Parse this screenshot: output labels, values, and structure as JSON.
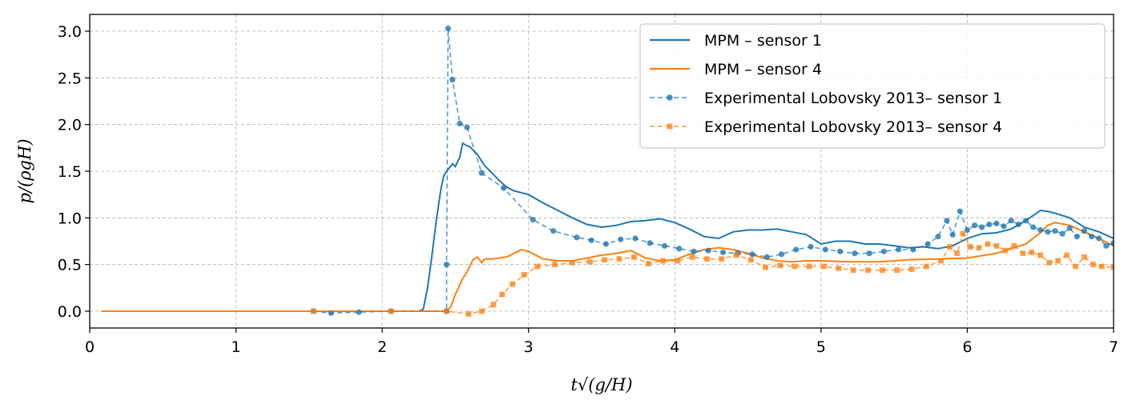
{
  "chart_data": {
    "type": "line",
    "xlabel": "t√(g/H)",
    "ylabel": "p/(ρgH)",
    "xlim": [
      0,
      7
    ],
    "ylim": [
      -0.18,
      3.18
    ],
    "x_ticks": [
      "0",
      "1",
      "2",
      "3",
      "4",
      "5",
      "6",
      "7"
    ],
    "y_ticks": [
      "0.0",
      "0.5",
      "1.0",
      "1.5",
      "2.0",
      "2.5",
      "3.0"
    ],
    "x_tick_values": [
      0,
      1,
      2,
      3,
      4,
      5,
      6,
      7
    ],
    "y_tick_values": [
      0,
      0.5,
      1.0,
      1.5,
      2.0,
      2.5,
      3.0
    ],
    "grid": true,
    "legend_position": "top-right",
    "colors": {
      "blue": "#1f77b4",
      "orange": "#ff7f0e"
    },
    "series": [
      {
        "name": "MPM – sensor 1",
        "style": "solid",
        "color": "#1f77b4",
        "x": [
          0.08,
          2.25,
          2.28,
          2.31,
          2.34,
          2.37,
          2.4,
          2.42,
          2.45,
          2.48,
          2.5,
          2.53,
          2.55,
          2.57,
          2.6,
          2.65,
          2.7,
          2.75,
          2.8,
          2.85,
          2.9,
          2.95,
          3.0,
          3.1,
          3.2,
          3.3,
          3.4,
          3.5,
          3.6,
          3.7,
          3.8,
          3.9,
          4.0,
          4.1,
          4.2,
          4.3,
          4.4,
          4.5,
          4.6,
          4.7,
          4.8,
          4.9,
          5.0,
          5.1,
          5.2,
          5.3,
          5.4,
          5.5,
          5.6,
          5.7,
          5.8,
          5.9,
          6.0,
          6.1,
          6.2,
          6.3,
          6.4,
          6.5,
          6.55,
          6.6,
          6.7,
          6.8,
          6.9,
          7.0
        ],
        "y": [
          0.0,
          0.0,
          0.02,
          0.25,
          0.6,
          0.98,
          1.3,
          1.45,
          1.52,
          1.58,
          1.55,
          1.65,
          1.8,
          1.78,
          1.76,
          1.68,
          1.56,
          1.48,
          1.4,
          1.33,
          1.29,
          1.27,
          1.25,
          1.16,
          1.08,
          1.0,
          0.93,
          0.9,
          0.92,
          0.96,
          0.97,
          0.99,
          0.95,
          0.88,
          0.8,
          0.78,
          0.85,
          0.87,
          0.87,
          0.88,
          0.85,
          0.82,
          0.72,
          0.75,
          0.75,
          0.72,
          0.72,
          0.7,
          0.68,
          0.69,
          0.67,
          0.7,
          0.78,
          0.83,
          0.84,
          0.88,
          0.97,
          1.08,
          1.07,
          1.05,
          1.0,
          0.9,
          0.85,
          0.78
        ]
      },
      {
        "name": "MPM – sensor 4",
        "style": "solid",
        "color": "#ff7f0e",
        "x": [
          0.08,
          2.44,
          2.47,
          2.5,
          2.53,
          2.55,
          2.58,
          2.62,
          2.65,
          2.68,
          2.7,
          2.75,
          2.8,
          2.85,
          2.9,
          2.95,
          3.0,
          3.1,
          3.2,
          3.3,
          3.4,
          3.5,
          3.6,
          3.7,
          3.8,
          3.9,
          4.0,
          4.1,
          4.2,
          4.3,
          4.4,
          4.5,
          4.6,
          4.7,
          4.8,
          4.9,
          5.0,
          5.2,
          5.4,
          5.6,
          5.8,
          6.0,
          6.2,
          6.4,
          6.5,
          6.55,
          6.6,
          6.7,
          6.8,
          6.9,
          7.0
        ],
        "y": [
          0.0,
          0.0,
          0.05,
          0.18,
          0.28,
          0.35,
          0.42,
          0.55,
          0.58,
          0.52,
          0.56,
          0.56,
          0.57,
          0.58,
          0.62,
          0.66,
          0.64,
          0.56,
          0.54,
          0.54,
          0.57,
          0.6,
          0.62,
          0.65,
          0.57,
          0.54,
          0.55,
          0.61,
          0.66,
          0.68,
          0.66,
          0.62,
          0.57,
          0.54,
          0.53,
          0.54,
          0.54,
          0.53,
          0.53,
          0.55,
          0.56,
          0.57,
          0.62,
          0.72,
          0.84,
          0.92,
          0.95,
          0.92,
          0.85,
          0.78,
          0.7
        ]
      },
      {
        "name": "Experimental Lobovsky 2013– sensor 1",
        "style": "dashed-markers",
        "marker": "circle",
        "color": "#1f77b4",
        "x": [
          1.53,
          1.65,
          1.84,
          2.06,
          2.44,
          2.44,
          2.45,
          2.48,
          2.53,
          2.58,
          2.68,
          2.83,
          3.03,
          3.17,
          3.33,
          3.43,
          3.53,
          3.63,
          3.73,
          3.83,
          3.93,
          4.03,
          4.13,
          4.23,
          4.33,
          4.43,
          4.53,
          4.63,
          4.73,
          4.83,
          4.93,
          5.03,
          5.13,
          5.23,
          5.33,
          5.43,
          5.53,
          5.63,
          5.73,
          5.8,
          5.86,
          5.9,
          5.95,
          6.0,
          6.05,
          6.1,
          6.15,
          6.2,
          6.25,
          6.3,
          6.35,
          6.4,
          6.45,
          6.5,
          6.55,
          6.6,
          6.65,
          6.7,
          6.75,
          6.8,
          6.85,
          6.9,
          6.95,
          7.0
        ],
        "y": [
          0.0,
          -0.02,
          -0.01,
          0.0,
          0.0,
          0.5,
          3.03,
          2.48,
          2.01,
          1.97,
          1.48,
          1.32,
          0.98,
          0.86,
          0.79,
          0.76,
          0.72,
          0.77,
          0.78,
          0.73,
          0.7,
          0.67,
          0.64,
          0.65,
          0.63,
          0.62,
          0.61,
          0.58,
          0.61,
          0.66,
          0.69,
          0.66,
          0.64,
          0.62,
          0.62,
          0.64,
          0.66,
          0.66,
          0.72,
          0.8,
          0.97,
          0.82,
          1.07,
          0.87,
          0.92,
          0.9,
          0.93,
          0.94,
          0.91,
          0.97,
          0.93,
          0.97,
          0.9,
          0.87,
          0.85,
          0.86,
          0.83,
          0.89,
          0.8,
          0.86,
          0.8,
          0.78,
          0.7,
          0.73
        ]
      },
      {
        "name": "Experimental Lobovsky 2013– sensor 4",
        "style": "dashed-markers",
        "marker": "square",
        "color": "#ff7f0e",
        "x": [
          1.53,
          2.06,
          2.44,
          2.59,
          2.68,
          2.76,
          2.82,
          2.89,
          2.97,
          3.06,
          3.18,
          3.3,
          3.42,
          3.52,
          3.62,
          3.72,
          3.82,
          3.92,
          4.02,
          4.12,
          4.22,
          4.32,
          4.42,
          4.52,
          4.62,
          4.72,
          4.82,
          4.92,
          5.02,
          5.12,
          5.22,
          5.32,
          5.42,
          5.52,
          5.62,
          5.72,
          5.82,
          5.88,
          5.93,
          5.97,
          6.02,
          6.08,
          6.14,
          6.2,
          6.26,
          6.32,
          6.38,
          6.44,
          6.5,
          6.56,
          6.62,
          6.68,
          6.74,
          6.8,
          6.86,
          6.92,
          7.0
        ],
        "y": [
          0.0,
          0.0,
          0.0,
          -0.03,
          0.0,
          0.07,
          0.18,
          0.29,
          0.39,
          0.48,
          0.5,
          0.52,
          0.53,
          0.55,
          0.56,
          0.58,
          0.51,
          0.54,
          0.54,
          0.58,
          0.56,
          0.56,
          0.6,
          0.55,
          0.47,
          0.49,
          0.48,
          0.48,
          0.48,
          0.46,
          0.44,
          0.44,
          0.44,
          0.44,
          0.45,
          0.48,
          0.54,
          0.69,
          0.62,
          0.83,
          0.69,
          0.68,
          0.72,
          0.7,
          0.65,
          0.7,
          0.62,
          0.63,
          0.6,
          0.52,
          0.54,
          0.6,
          0.48,
          0.58,
          0.5,
          0.48,
          0.47
        ]
      }
    ]
  }
}
